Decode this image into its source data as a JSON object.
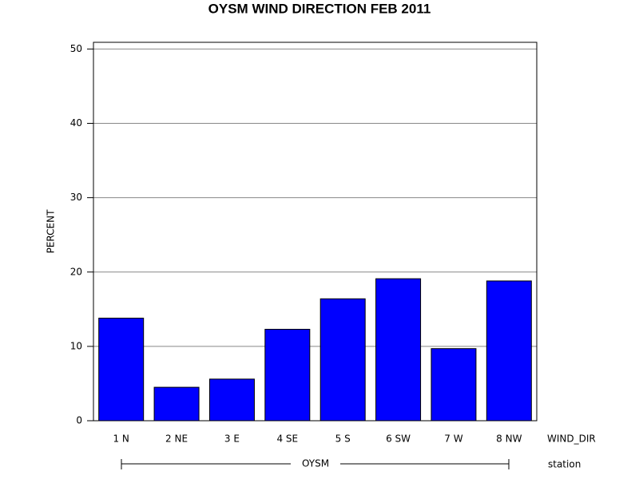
{
  "chart_data": {
    "type": "bar",
    "title": "OYSM WIND DIRECTION FEB 2011",
    "y_label": "PERCENT",
    "x_label": "WIND_DIR",
    "group_label": "OYSM",
    "group_axis_label": "station",
    "categories": [
      "1 N",
      "2 NE",
      "3 E",
      "4 SE",
      "5 S",
      "6 SW",
      "7 W",
      "8 NW"
    ],
    "values": [
      13.8,
      4.5,
      5.6,
      12.3,
      16.4,
      19.1,
      9.7,
      18.8
    ],
    "color": "#0000ff",
    "ylim": [
      0,
      50.9
    ],
    "yticks": [
      0,
      10,
      20,
      30,
      40,
      50
    ],
    "grid": true
  }
}
